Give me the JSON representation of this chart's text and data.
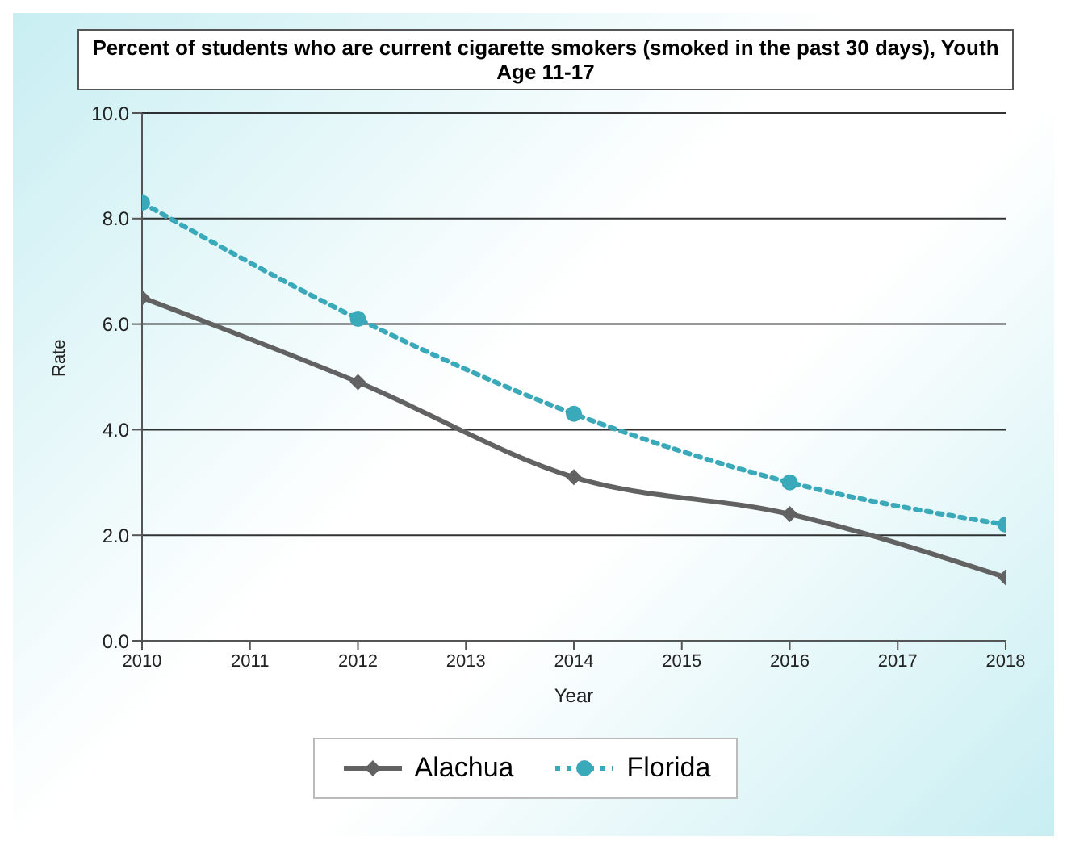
{
  "chart_data": {
    "type": "line",
    "title": "Percent of students who are current cigarette smokers (smoked in the past 30 days), Youth Age 11-17",
    "xlabel": "Year",
    "ylabel": "Rate",
    "x": [
      2010,
      2012,
      2014,
      2016,
      2018
    ],
    "series": [
      {
        "name": "Alachua",
        "color": "#626262",
        "values": [
          6.5,
          4.9,
          3.1,
          2.4,
          1.2
        ],
        "marker": "diamond",
        "line_style": "solid"
      },
      {
        "name": "Florida",
        "color": "#3aa9b9",
        "values": [
          8.3,
          6.1,
          4.3,
          3.0,
          2.2
        ],
        "marker": "circle",
        "line_style": "dotted"
      }
    ],
    "xlim": [
      2010,
      2018
    ],
    "xticks": [
      2010,
      2011,
      2012,
      2013,
      2014,
      2015,
      2016,
      2017,
      2018
    ],
    "ylim": [
      0,
      10
    ],
    "yticks": [
      {
        "value": 0,
        "label": "0.0"
      },
      {
        "value": 2,
        "label": "2.0"
      },
      {
        "value": 4,
        "label": "4.0"
      },
      {
        "value": 6,
        "label": "6.0"
      },
      {
        "value": 8,
        "label": "8.0"
      },
      {
        "value": 10,
        "label": "10.0"
      }
    ],
    "grid": "y",
    "legend": "bottom"
  }
}
